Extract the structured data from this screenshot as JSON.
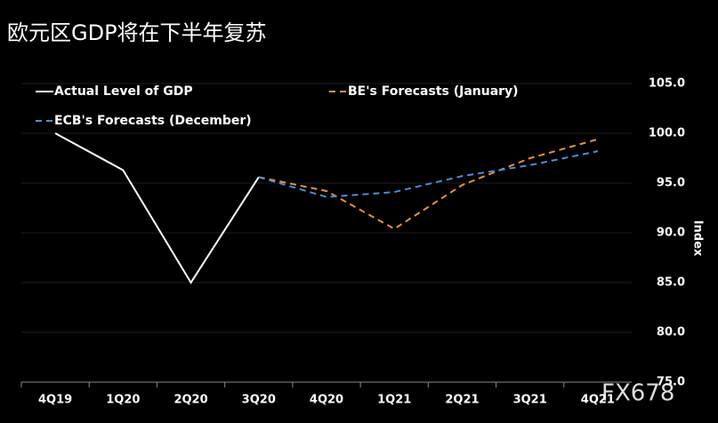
{
  "chart_data": {
    "type": "line",
    "title": "欧元区GDP将在下半年复苏",
    "categories": [
      "4Q19",
      "1Q20",
      "2Q20",
      "3Q20",
      "4Q20",
      "1Q21",
      "2Q21",
      "3Q21",
      "4Q21"
    ],
    "series": [
      {
        "name": "Actual Level of GDP",
        "color": "#ffffff",
        "dashed": false,
        "values": [
          100,
          96.3,
          85.0,
          95.6,
          null,
          null,
          null,
          null,
          null
        ]
      },
      {
        "name": "BE's Forecasts (January)",
        "color": "#e8923a",
        "dashed": true,
        "values": [
          null,
          null,
          null,
          95.6,
          94.2,
          90.4,
          94.8,
          97.5,
          99.4
        ]
      },
      {
        "name": "ECB's Forecasts (December)",
        "color": "#4a90d9",
        "dashed": true,
        "values": [
          null,
          null,
          null,
          95.6,
          93.6,
          94.1,
          95.7,
          96.8,
          98.2
        ]
      }
    ],
    "ylabel": "Index",
    "ylim": [
      75,
      105
    ],
    "yticks": [
      {
        "value": 75,
        "label": "75.0"
      },
      {
        "value": 80,
        "label": "80.0"
      },
      {
        "value": 85,
        "label": "85.0"
      },
      {
        "value": 90,
        "label": "90.0"
      },
      {
        "value": 95,
        "label": "95.0"
      },
      {
        "value": 100,
        "label": "100.0"
      },
      {
        "value": 105,
        "label": "105.0"
      }
    ],
    "grid": true,
    "watermark": "FX678"
  }
}
